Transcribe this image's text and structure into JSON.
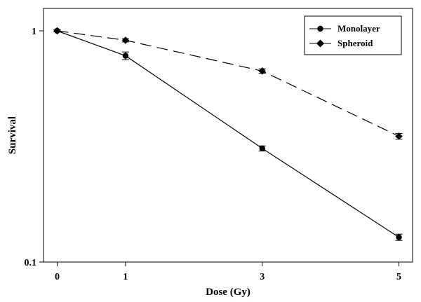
{
  "chart_data": {
    "type": "line",
    "xlabel": "Dose (Gy)",
    "ylabel": "Survival",
    "xlim": [
      -0.2,
      5.2
    ],
    "ylim": [
      0.1,
      1.25
    ],
    "yscale": "log",
    "x_ticks": [
      0,
      1,
      3,
      5
    ],
    "x_tick_labels": [
      "0",
      "1",
      "3",
      "5"
    ],
    "y_ticks": [
      0.1,
      1
    ],
    "y_tick_labels": [
      "0.1",
      "1"
    ],
    "grid": false,
    "legend_position": "top-right",
    "series": [
      {
        "name": "Monolayer",
        "marker": "circle",
        "line_style": "solid",
        "x": [
          0,
          1,
          3,
          5
        ],
        "y": [
          1.0,
          0.78,
          0.31,
          0.128
        ],
        "err": [
          0.01,
          0.03,
          0.008,
          0.004
        ]
      },
      {
        "name": "Spheroid",
        "marker": "diamond",
        "line_style": "dashed",
        "x": [
          0,
          1,
          3,
          5
        ],
        "y": [
          1.0,
          0.91,
          0.67,
          0.35
        ],
        "err": [
          0.01,
          0.015,
          0.015,
          0.01
        ]
      }
    ]
  }
}
